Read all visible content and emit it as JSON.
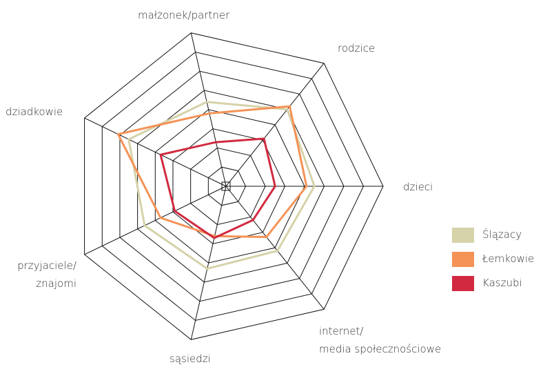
{
  "chart_data": {
    "type": "radar",
    "categories": [
      "dzieci",
      "rodzice",
      "małżonek/partner",
      "dziadkowie",
      "przyjaciele/\nznajomi",
      "sąsiedzi",
      "internet/\nmedia społecznościowe"
    ],
    "ylim": [
      0,
      8
    ],
    "yticks": [
      1,
      2,
      3,
      4,
      5,
      6,
      7,
      8
    ],
    "series": [
      {
        "name": "Ślązacy",
        "color": "#d6d2a9",
        "values": [
          4.5,
          5.0,
          4.4,
          5.5,
          4.6,
          4.3,
          4.2
        ]
      },
      {
        "name": "Łemkowie",
        "color": "#f59256",
        "values": [
          4.1,
          5.2,
          3.8,
          6.1,
          3.7,
          2.6,
          3.3
        ]
      },
      {
        "name": "Kaszubi",
        "color": "#d12a40",
        "values": [
          2.5,
          3.1,
          2.3,
          3.7,
          2.9,
          2.7,
          2.2
        ]
      }
    ]
  }
}
